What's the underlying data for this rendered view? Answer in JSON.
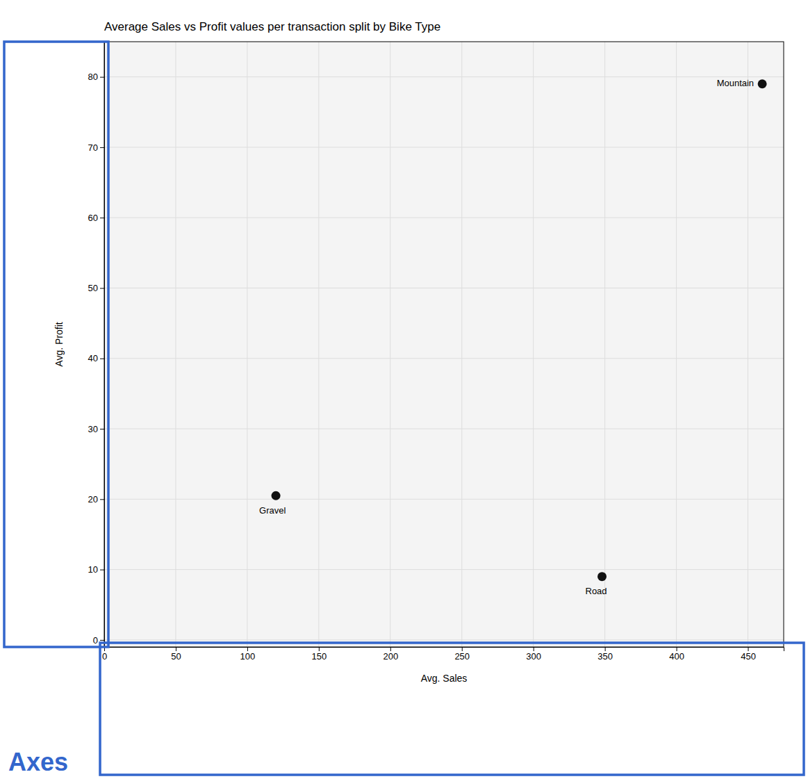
{
  "chart_data": {
    "type": "scatter",
    "title": "Average Sales vs Profit values per transaction split by Bike Type",
    "x_label": "Avg. Sales",
    "y_label": "Avg. Profit",
    "labels": [
      "Mountain",
      "Gravel",
      "Road"
    ],
    "x": [
      460,
      120,
      348
    ],
    "values": [
      79,
      20.5,
      9
    ],
    "color": "#111111",
    "xlim": [
      0,
      475
    ],
    "ylim": [
      -1,
      85
    ],
    "xticks": [
      0,
      50,
      100,
      150,
      200,
      250,
      300,
      350,
      400,
      450
    ],
    "yticks": [
      0,
      10,
      20,
      30,
      40,
      50,
      60,
      70,
      80
    ],
    "grid": true,
    "annotations": [
      {
        "text": "Axes",
        "color": "#3366cc"
      }
    ]
  }
}
